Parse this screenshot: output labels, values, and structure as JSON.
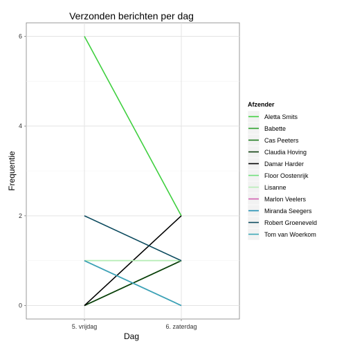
{
  "chart_data": {
    "type": "line",
    "title": "Verzonden berichten per dag",
    "xlabel": "Dag",
    "ylabel": "Frequentie",
    "categories": [
      "5. vrijdag",
      "6. zaterdag"
    ],
    "ylim": [
      -0.3,
      6.3
    ],
    "yticks": [
      0,
      2,
      4,
      6
    ],
    "grid": true,
    "legend": {
      "title": "Afzender",
      "placement": "right"
    },
    "series": [
      {
        "name": "Aletta Smits",
        "color": "#3fcf3f",
        "values": [
          6,
          2
        ]
      },
      {
        "name": "Babette",
        "color": "#2ca02c",
        "values": [
          0,
          1
        ]
      },
      {
        "name": "Cas Peeters",
        "color": "#1f7a1f",
        "values": [
          0,
          1
        ]
      },
      {
        "name": "Claudia Hoving",
        "color": "#0d3d0d",
        "values": [
          0,
          1
        ]
      },
      {
        "name": "Damar Harder",
        "color": "#000000",
        "values": [
          0,
          2
        ]
      },
      {
        "name": "Floor Oostenrijk",
        "color": "#6fe07a",
        "values": [
          1,
          1
        ]
      },
      {
        "name": "Lisanne",
        "color": "#b5ecb5",
        "values": [
          1,
          1
        ]
      },
      {
        "name": "Marlon Veelers",
        "color": "#d25fb0",
        "values": [
          1,
          0
        ]
      },
      {
        "name": "Miranda Seegers",
        "color": "#1f8fb3",
        "values": [
          1,
          0
        ]
      },
      {
        "name": "Robert Groeneveld",
        "color": "#0b4a5e",
        "values": [
          2,
          1
        ]
      },
      {
        "name": "Tom van Woerkom",
        "color": "#3ba7b7",
        "values": [
          1,
          0
        ]
      }
    ]
  }
}
